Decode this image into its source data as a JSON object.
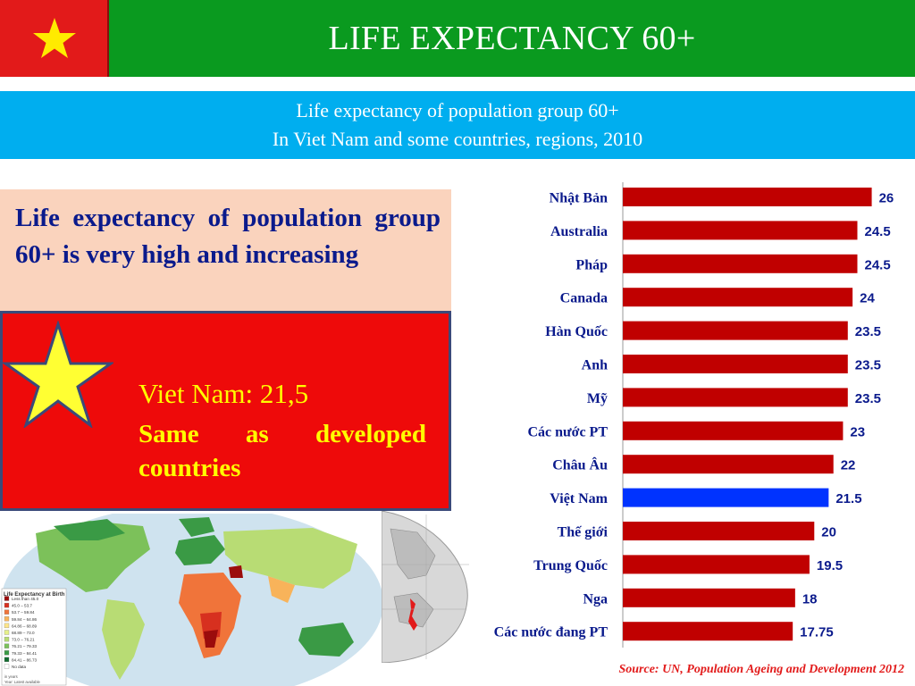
{
  "header": {
    "title": "LIFE EXPECTANCY 60+"
  },
  "subtitle": {
    "line1": "Life expectancy of population group 60+",
    "line2": "In Viet Nam and some countries, regions, 2010"
  },
  "info": {
    "text": "Life expectancy of population group 60+ is very high and increasing"
  },
  "highlight": {
    "heading": "Viet Nam: 21,5",
    "text": "Same as developed countries"
  },
  "map_legend": {
    "title": "Life Expectancy at Birth",
    "items": [
      "Less than 45.0",
      "45.0 – 53.7",
      "53.7 – 59.84",
      "59.84 – 64.86",
      "64.86 – 68.89",
      "68.89 – 73.0",
      "73.0 – 76.21",
      "76.21 – 79.33",
      "79.33 – 84.41",
      "84.41 – 86.73",
      "No data"
    ],
    "colors": [
      "#9b0c0c",
      "#d7301f",
      "#f0743a",
      "#f8b35a",
      "#fde58a",
      "#e6f08a",
      "#b8dc74",
      "#7cc15a",
      "#3a9a45",
      "#116b2e",
      "#ffffff"
    ],
    "footnote1": "in years",
    "footnote2": "Year: Latest available"
  },
  "colors": {
    "bar": "#c00000",
    "highlight_bar": "#0033ff",
    "title_green": "#0a9a1f",
    "subtitle_blue": "#00aeef",
    "label": "#0a1a8c",
    "value": "#0a1a8c"
  },
  "chart_data": {
    "type": "bar",
    "orientation": "horizontal",
    "categories": [
      "Nhật Bản",
      "Australia",
      "Pháp",
      "Canada",
      "Hàn Quốc",
      "Anh",
      "Mỹ",
      "Các nước PT",
      "Châu Âu",
      "Việt Nam",
      "Thế giới",
      "Trung Quốc",
      "Nga",
      "Các nước đang PT"
    ],
    "values": [
      26,
      24.5,
      24.5,
      24,
      23.5,
      23.5,
      23.5,
      23,
      22,
      21.5,
      20,
      19.5,
      18,
      17.75
    ],
    "value_labels": [
      "26",
      "24.5",
      "24.5",
      "24",
      "23.5",
      "23.5",
      "23.5",
      "23",
      "22",
      "21.5",
      "20",
      "19.5",
      "18",
      "17.75"
    ],
    "highlight_category": "Việt Nam",
    "xlim": [
      0,
      28
    ],
    "grid": false,
    "legend": "none"
  },
  "source": {
    "text": "Source: UN, Population Ageing and Development 2012"
  }
}
